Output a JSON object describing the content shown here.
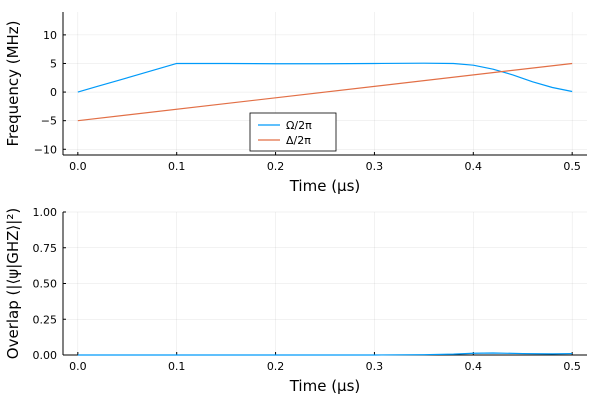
{
  "chart_data": [
    {
      "type": "line",
      "xlabel": "Time (μs)",
      "ylabel": "Frequency (MHz)",
      "xlim": [
        -0.015,
        0.515
      ],
      "ylim": [
        -11,
        14
      ],
      "xticks": [
        0.0,
        0.1,
        0.2,
        0.3,
        0.4,
        0.5
      ],
      "xtick_labels": [
        "0.0",
        "0.1",
        "0.2",
        "0.3",
        "0.4",
        "0.5"
      ],
      "yticks": [
        -10,
        -5,
        0,
        5,
        10
      ],
      "ytick_labels": [
        "−10",
        "−5",
        "0",
        "5",
        "10"
      ],
      "grid": true,
      "legend_position": "bottom-center",
      "series": [
        {
          "name": "Ω/2π",
          "color": "#009af9",
          "x": [
            0.0,
            0.02,
            0.04,
            0.06,
            0.08,
            0.1,
            0.15,
            0.2,
            0.25,
            0.3,
            0.35,
            0.38,
            0.4,
            0.42,
            0.44,
            0.46,
            0.48,
            0.5
          ],
          "y": [
            0.0,
            1.0,
            2.0,
            3.0,
            4.0,
            5.0,
            5.0,
            4.95,
            4.95,
            5.0,
            5.05,
            5.0,
            4.7,
            4.0,
            3.0,
            1.8,
            0.8,
            0.1
          ]
        },
        {
          "name": "Δ/2π",
          "color": "#e26f46",
          "x": [
            0.0,
            0.5
          ],
          "y": [
            -5.0,
            5.0
          ]
        }
      ]
    },
    {
      "type": "line",
      "xlabel": "Time (μs)",
      "ylabel": "Overlap (|⟨ψ|GHZ⟩|²)",
      "xlim": [
        -0.015,
        0.515
      ],
      "ylim": [
        0.0,
        1.0
      ],
      "xticks": [
        0.0,
        0.1,
        0.2,
        0.3,
        0.4,
        0.5
      ],
      "xtick_labels": [
        "0.0",
        "0.1",
        "0.2",
        "0.3",
        "0.4",
        "0.5"
      ],
      "yticks": [
        0.0,
        0.25,
        0.5,
        0.75,
        1.0
      ],
      "ytick_labels": [
        "0.00",
        "0.25",
        "0.50",
        "0.75",
        "1.00"
      ],
      "grid": true,
      "series": [
        {
          "color": "#009af9",
          "x": [
            0.0,
            0.1,
            0.2,
            0.3,
            0.35,
            0.38,
            0.4,
            0.42,
            0.45,
            0.48,
            0.5
          ],
          "y": [
            0.0,
            0.0,
            0.0,
            0.0,
            0.002,
            0.006,
            0.012,
            0.014,
            0.01,
            0.008,
            0.01
          ]
        }
      ]
    }
  ]
}
